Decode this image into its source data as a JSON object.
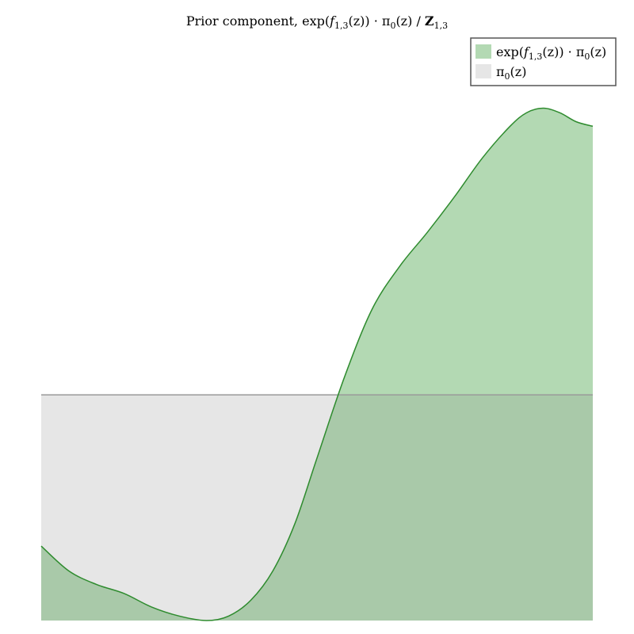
{
  "chart_data": {
    "type": "area",
    "title": "Prior component, exp(f₁,₃(z)) · π₀(z) / Z₁,₃",
    "title_parts": {
      "lead": "Prior component, exp(",
      "f": "f",
      "f_sub": "1,3",
      "mid": "(z)) · π",
      "pi_sub": "0",
      "tail": "(z) / ",
      "Z": "Z",
      "Z_sub": "1,3"
    },
    "xlabel": "",
    "ylabel": "",
    "xlim": [
      0,
      1
    ],
    "ylim": [
      0,
      2.3
    ],
    "grid": false,
    "axes_visible": false,
    "legend_position": "top-right",
    "colors": {
      "posterior_fill": "#b3d9b3",
      "posterior_line": "#2e8b2e",
      "prior_fill": "#e6e6e6",
      "prior_line": "#999999",
      "overlap_fill": "#a9c9a9",
      "legend_border": "#555555"
    },
    "series": [
      {
        "name": "exp(f1,3(z)) · π0(z)",
        "legend_parts": {
          "lead": "exp(",
          "f": "f",
          "f_sub": "1,3",
          "mid": "(z)) · π",
          "pi_sub": "0",
          "tail": "(z)"
        },
        "x": [
          0.0,
          0.05,
          0.1,
          0.15,
          0.2,
          0.25,
          0.3,
          0.34,
          0.38,
          0.42,
          0.46,
          0.5,
          0.55,
          0.6,
          0.65,
          0.7,
          0.75,
          0.8,
          0.85,
          0.88,
          0.91,
          0.94,
          0.97,
          1.0
        ],
        "values": [
          0.33,
          0.22,
          0.16,
          0.12,
          0.06,
          0.02,
          0.0,
          0.02,
          0.09,
          0.22,
          0.43,
          0.72,
          1.08,
          1.38,
          1.57,
          1.72,
          1.88,
          2.05,
          2.19,
          2.25,
          2.27,
          2.25,
          2.21,
          2.19
        ]
      },
      {
        "name": "π0(z)",
        "legend_parts": {
          "lead": "π",
          "pi_sub": "0",
          "tail": "(z)"
        },
        "x": [
          0.0,
          1.0
        ],
        "values": [
          1.0,
          1.0
        ]
      }
    ]
  }
}
